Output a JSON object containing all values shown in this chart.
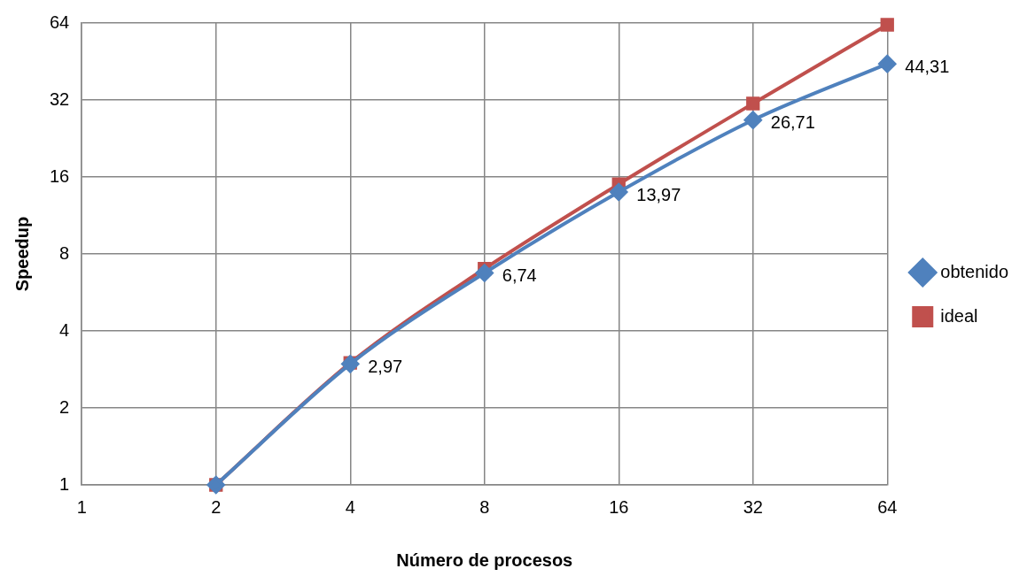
{
  "chart_data": {
    "type": "line",
    "xlabel": "Número de procesos",
    "ylabel": "Speedup",
    "x": [
      2,
      4,
      8,
      16,
      32,
      64
    ],
    "series": [
      {
        "name": "ideal",
        "color": "#c0504d",
        "marker": "square",
        "values": [
          1,
          3,
          7,
          15,
          31,
          63
        ]
      },
      {
        "name": "obtenido",
        "color": "#4f81bd",
        "marker": "diamond",
        "values": [
          1,
          2.97,
          6.74,
          13.97,
          26.71,
          44.31
        ],
        "value_labels": [
          null,
          "2,97",
          "6,74",
          "13,97",
          "26,71",
          "44,31"
        ]
      }
    ],
    "log": "xy",
    "xlim": [
      1,
      64
    ],
    "xticks": [
      1,
      2,
      4,
      8,
      16,
      32,
      64
    ],
    "ylim": [
      1,
      64
    ],
    "yticks": [
      1,
      2,
      4,
      8,
      16,
      32,
      64
    ],
    "grid": true,
    "legend": "right"
  }
}
